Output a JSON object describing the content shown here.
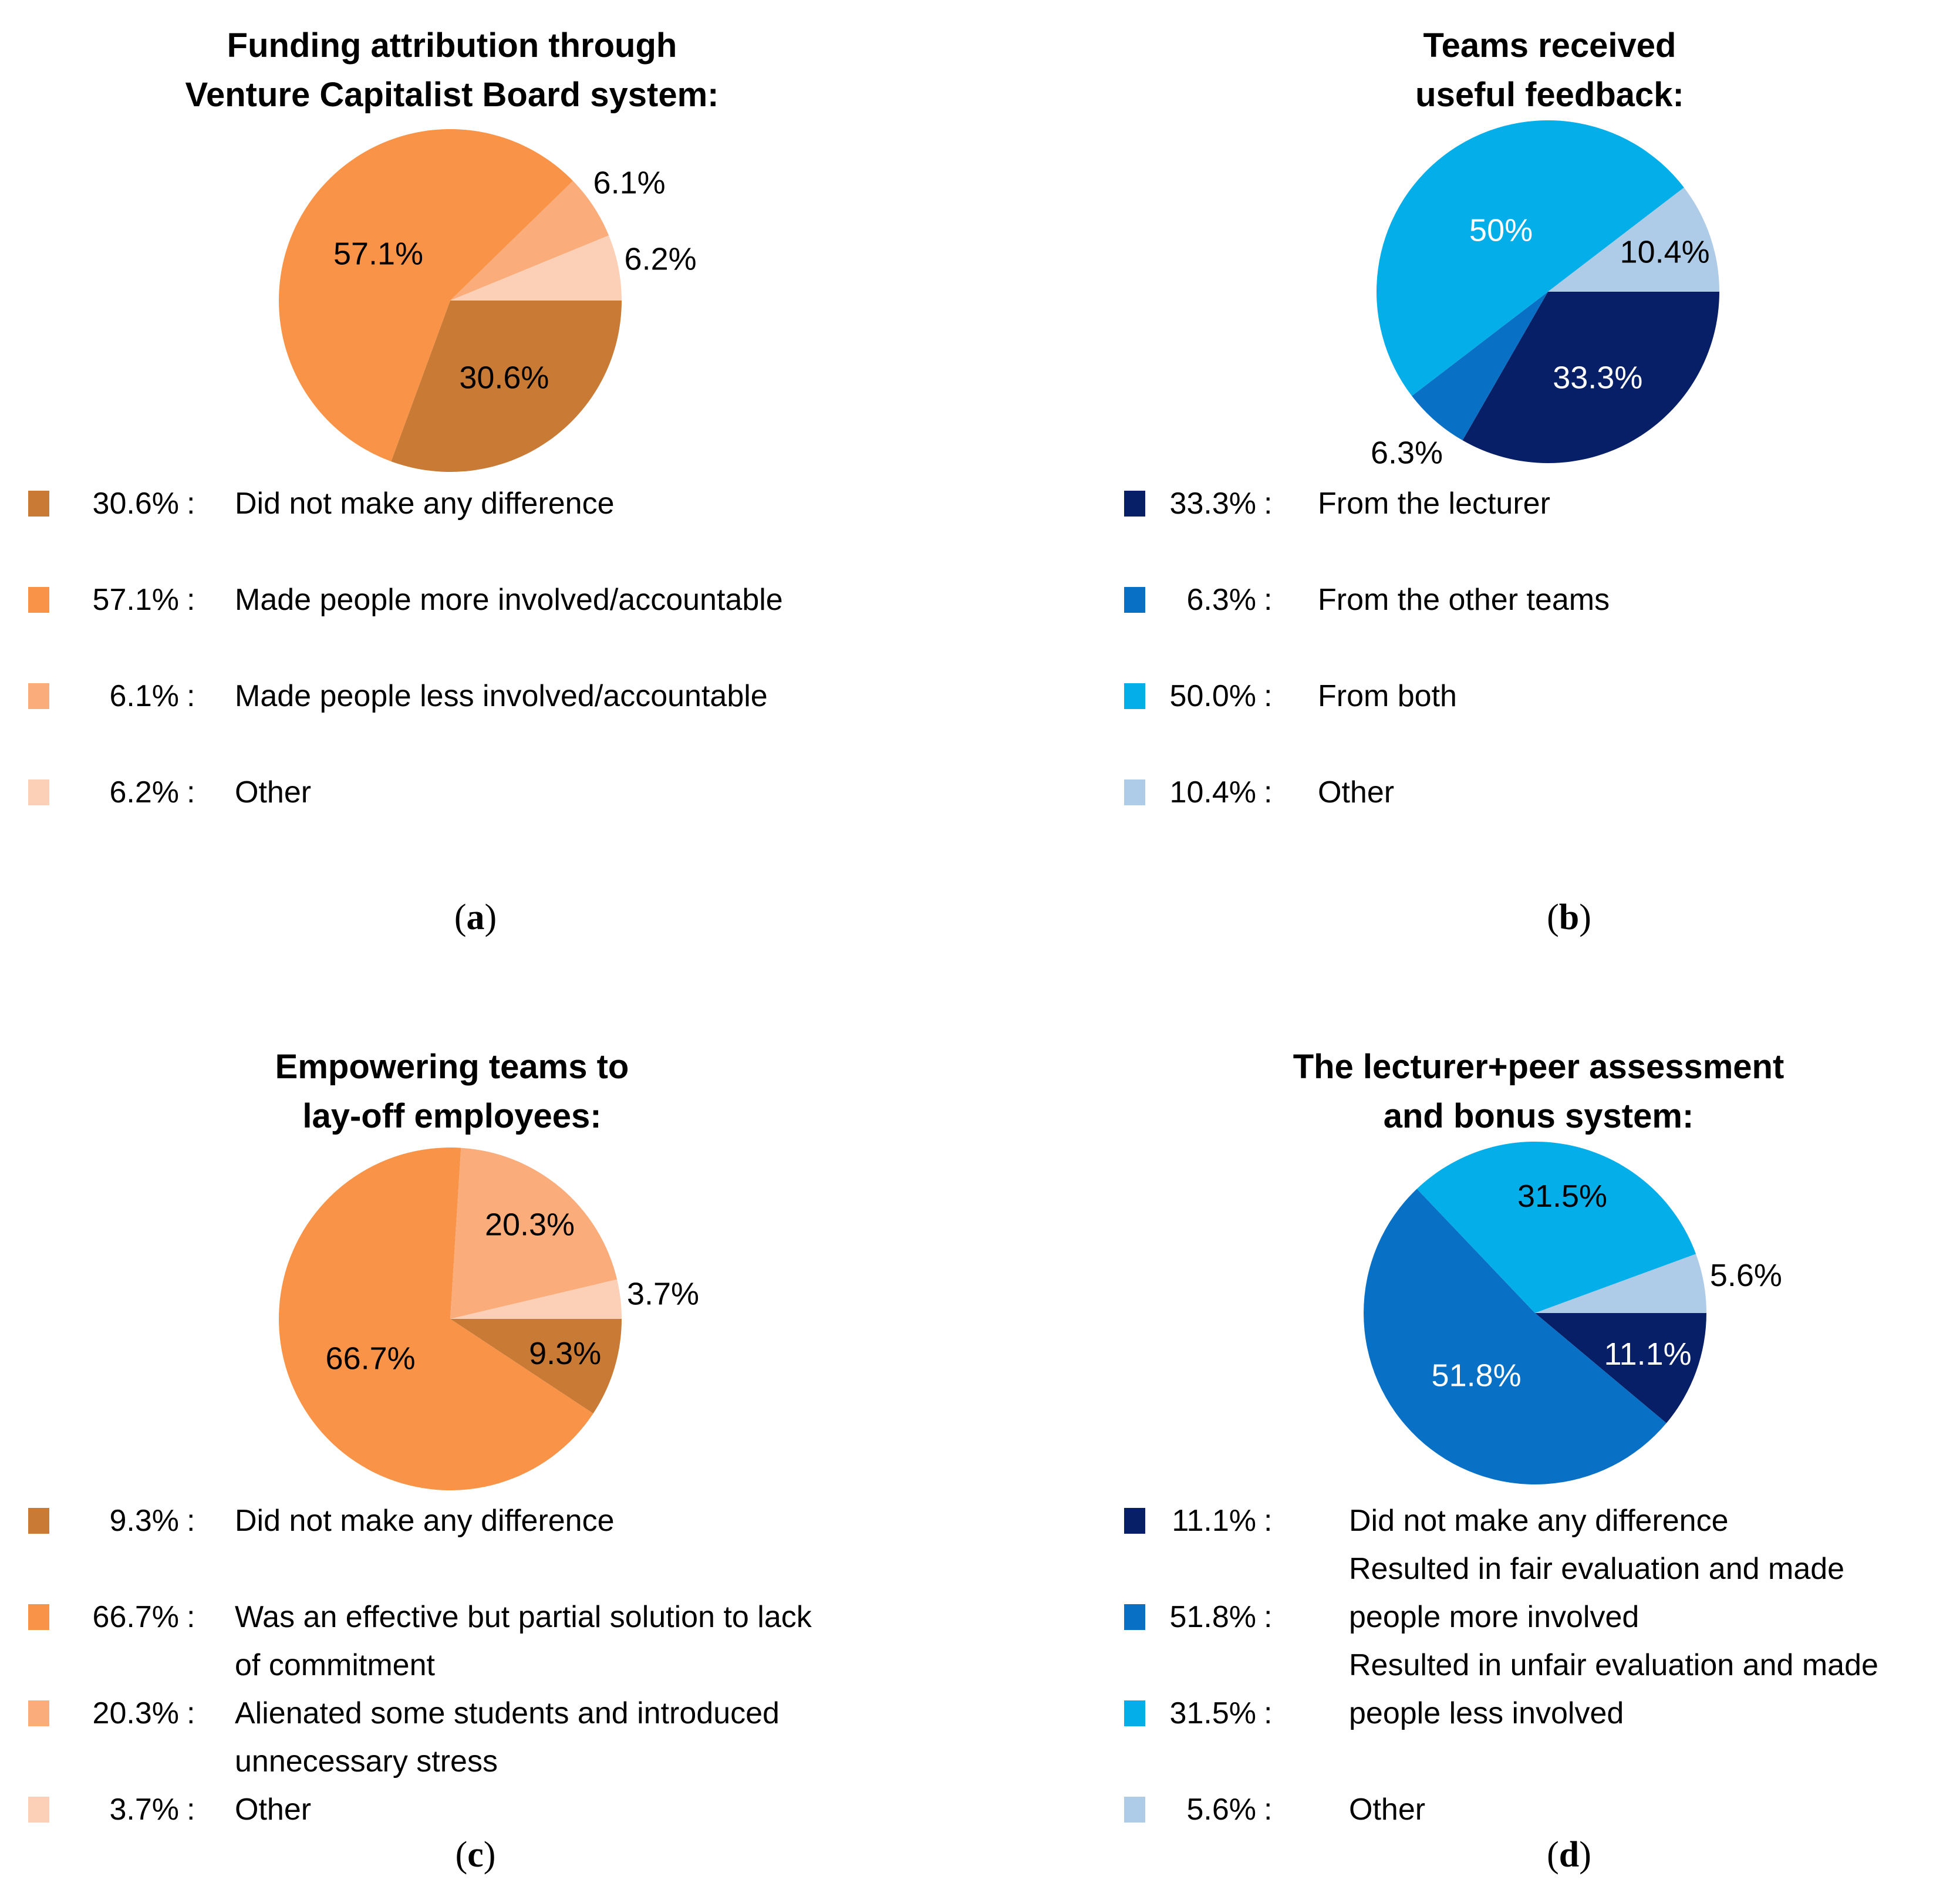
{
  "chart_data": [
    {
      "type": "pie",
      "title": "Funding attribution through Venture Capitalist Board system:",
      "start_angle": "east",
      "direction": "clockwise",
      "unit": "%",
      "slices": [
        {
          "value": 30.6,
          "label": "Did not make any difference",
          "color": "#C97A35",
          "pie_label": "30.6%",
          "pie_label_inside": true,
          "pie_label_color": "#000000",
          "pie_label_dist": 0.55
        },
        {
          "value": 57.1,
          "label": "Made people more involved/accountable",
          "color": "#F99348",
          "pie_label": "57.1%",
          "pie_label_inside": true,
          "pie_label_color": "#000000",
          "pie_label_dist": 0.5
        },
        {
          "value": 6.1,
          "label": "Made people less involved/accountable",
          "color": "#FAAC7A",
          "pie_label": "6.1%",
          "pie_label_inside": false,
          "pie_label_color": "#000000",
          "pie_label_dist": 1.25
        },
        {
          "value": 6.2,
          "label": "Other",
          "color": "#FCD0B6",
          "pie_label": "6.2%",
          "pie_label_inside": false,
          "pie_label_color": "#000000",
          "pie_label_dist": 1.25
        }
      ]
    },
    {
      "type": "pie",
      "title": "Teams received useful feedback:",
      "start_angle": "east",
      "direction": "clockwise",
      "unit": "%",
      "slices": [
        {
          "value": 33.3,
          "label": "From the lecturer",
          "color": "#071F66",
          "pie_label": "33.3%",
          "pie_label_inside": true,
          "pie_label_color": "#FFFFFF",
          "pie_label_dist": 0.58
        },
        {
          "value": 6.3,
          "label": "From the other teams",
          "color": "#0971C5",
          "pie_label": "6.3%",
          "pie_label_inside": false,
          "pie_label_color": "#000000",
          "pie_label_dist": 1.25
        },
        {
          "value": 50.0,
          "label": "From both",
          "color": "#04AEE9",
          "pie_label": "50%",
          "pie_label_inside": true,
          "pie_label_color": "#FFFFFF",
          "pie_label_dist": 0.45
        },
        {
          "value": 10.4,
          "label": "Other",
          "color": "#AECCE8",
          "pie_label": "10.4%",
          "pie_label_inside": true,
          "pie_label_color": "#000000",
          "pie_label_dist": 0.72
        }
      ]
    },
    {
      "type": "pie",
      "title": "Empowering teams to lay-off employees:",
      "start_angle": "east",
      "direction": "clockwise",
      "unit": "%",
      "slices": [
        {
          "value": 9.3,
          "label": "Did not make any difference",
          "color": "#C97A35",
          "pie_label": "9.3%",
          "pie_label_inside": true,
          "pie_label_color": "#000000",
          "pie_label_dist": 0.7
        },
        {
          "value": 66.7,
          "label": "Was an effective but partial solution to lack of commitment",
          "color": "#F99348",
          "pie_label": "66.7%",
          "pie_label_inside": true,
          "pie_label_color": "#000000",
          "pie_label_dist": 0.52
        },
        {
          "value": 20.3,
          "label": "Alienated some students and introduced unnecessary stress",
          "color": "#FAAC7A",
          "pie_label": "20.3%",
          "pie_label_inside": true,
          "pie_label_color": "#000000",
          "pie_label_dist": 0.72
        },
        {
          "value": 3.7,
          "label": "Other",
          "color": "#FCD0B6",
          "pie_label": "3.7%",
          "pie_label_inside": false,
          "pie_label_color": "#000000",
          "pie_label_dist": 1.25
        }
      ]
    },
    {
      "type": "pie",
      "title": "The lecturer+peer assessment and bonus system:",
      "start_angle": "east",
      "direction": "clockwise",
      "unit": "%",
      "slices": [
        {
          "value": 11.1,
          "label": "Did not make any difference",
          "color": "#071F66",
          "pie_label": "11.1%",
          "pie_label_inside": true,
          "pie_label_color": "#FFFFFF",
          "pie_label_dist": 0.7
        },
        {
          "value": 51.8,
          "label": "Resulted in fair evaluation and made people more involved",
          "color": "#0971C5",
          "pie_label": "51.8%",
          "pie_label_inside": true,
          "pie_label_color": "#FFFFFF",
          "pie_label_dist": 0.5
        },
        {
          "value": 31.5,
          "label": "Resulted in unfair evaluation and made people less involved",
          "color": "#04AEE9",
          "pie_label": "31.5%",
          "pie_label_inside": true,
          "pie_label_color": "#000000",
          "pie_label_dist": 0.7
        },
        {
          "value": 5.6,
          "label": "Other",
          "color": "#AECCE8",
          "pie_label": "5.6%",
          "pie_label_inside": false,
          "pie_label_color": "#000000",
          "pie_label_dist": 1.25
        }
      ]
    }
  ],
  "figure": {
    "panels": [
      {
        "caption_letter": "a",
        "title_lines": [
          "Funding attribution through",
          "Venture Capitalist Board system:"
        ],
        "legend_lines": [
          {
            "swatch": 0,
            "pct": "30.6%",
            "colon": ":",
            "text": "Did not make any difference"
          },
          {
            "text": ""
          },
          {
            "swatch": 1,
            "pct": "57.1%",
            "colon": ":",
            "text": "Made people more involved/accountable"
          },
          {
            "text": ""
          },
          {
            "swatch": 2,
            "pct": "6.1%",
            "colon": ":",
            "text": "Made people less involved/accountable"
          },
          {
            "text": ""
          },
          {
            "swatch": 3,
            "pct": "6.2%",
            "colon": ":",
            "text": "Other"
          }
        ]
      },
      {
        "caption_letter": "b",
        "title_lines": [
          "Teams received",
          "useful feedback:"
        ],
        "legend_lines": [
          {
            "swatch": 0,
            "pct": "33.3%",
            "colon": ":",
            "text": "From the lecturer"
          },
          {
            "text": ""
          },
          {
            "swatch": 1,
            "pct": "6.3%",
            "colon": ":",
            "text": "From the other teams"
          },
          {
            "text": ""
          },
          {
            "swatch": 2,
            "pct": "50.0%",
            "colon": ":",
            "text": "From both"
          },
          {
            "text": ""
          },
          {
            "swatch": 3,
            "pct": "10.4%",
            "colon": ":",
            "text": "Other"
          }
        ]
      },
      {
        "caption_letter": "c",
        "title_lines": [
          "Empowering teams to",
          "lay-off employees:"
        ],
        "legend_lines": [
          {
            "swatch": 0,
            "pct": "9.3%",
            "colon": ":",
            "text": "Did not make any difference"
          },
          {
            "text": ""
          },
          {
            "swatch": 1,
            "pct": "66.7%",
            "colon": ":",
            "text": "Was an effective but partial solution to lack"
          },
          {
            "text": "of commitment"
          },
          {
            "swatch": 2,
            "pct": "20.3%",
            "colon": ":",
            "text": "Alienated some students and introduced"
          },
          {
            "text": "unnecessary stress"
          },
          {
            "swatch": 3,
            "pct": "3.7%",
            "colon": ":",
            "text": "Other"
          }
        ]
      },
      {
        "caption_letter": "d",
        "title_lines": [
          "The lecturer+peer assessment",
          "and bonus system:"
        ],
        "legend_lines": [
          {
            "swatch": 0,
            "pct": "11.1%",
            "colon": ":",
            "text": "Did not make any difference"
          },
          {
            "text": "Resulted in fair evaluation and made"
          },
          {
            "swatch": 1,
            "pct": "51.8%",
            "colon": ":",
            "text": "people more involved"
          },
          {
            "text": "Resulted in unfair evaluation and made"
          },
          {
            "swatch": 2,
            "pct": "31.5%",
            "colon": ":",
            "text": "people less involved"
          },
          {
            "text": ""
          },
          {
            "swatch": 3,
            "pct": "5.6%",
            "colon": ":",
            "text": "Other"
          }
        ]
      }
    ]
  }
}
